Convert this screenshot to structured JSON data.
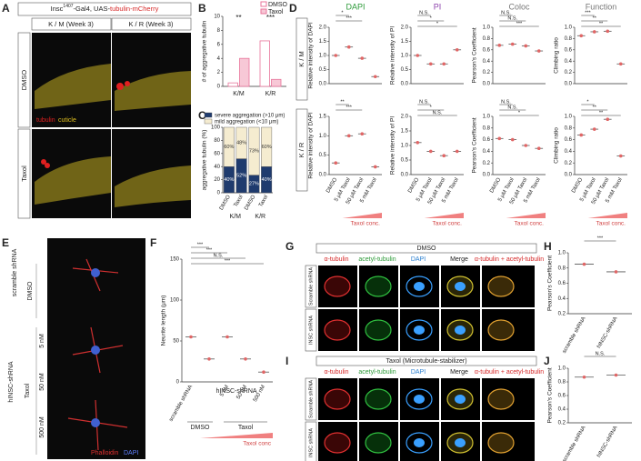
{
  "A": {
    "label": "A",
    "title_parts": [
      "Insc",
      "1407",
      "-Gal4, UAS-",
      "tubulin-mCherry"
    ],
    "columns": [
      "K / M (Week 3)",
      "K / R (Week 3)"
    ],
    "rows": [
      "DMSO",
      "Taxol"
    ],
    "legend": [
      "tubulin",
      "cuticle"
    ]
  },
  "B": {
    "label": "B"
  },
  "C": {
    "label": "C"
  },
  "D": {
    "label": "D",
    "rows": [
      "K / M",
      "K / R"
    ]
  },
  "E": {
    "label": "E",
    "rows": [
      "scramble shRNA",
      "DMSO",
      "hINSC-shRNA",
      "5 nM",
      "50 nM",
      "500 nM",
      "Taxol"
    ],
    "legend": [
      "Phalloidin",
      "DAPI"
    ]
  },
  "F": {
    "label": "F"
  },
  "G": {
    "label": "G",
    "title": "DMSO",
    "columns": [
      "α-tubulin",
      "acetyl-tubulin",
      "DAPI",
      "Merge",
      "α-tubulin + acetyl-tubulin"
    ],
    "rows": [
      "Scramble shRNA",
      "INSC shRNA"
    ]
  },
  "H": {
    "label": "H"
  },
  "I": {
    "label": "I",
    "title": "Taxol (Microtubule-stabilizer)",
    "columns": [
      "α-tubulin",
      "acetyl-tubulin",
      "DAPI",
      "Merge",
      "α-tubulin + acetyl-tubulin"
    ],
    "rows": [
      "Scramble shRNA",
      "INSC shRNA"
    ]
  },
  "J": {
    "label": "J"
  },
  "chart_data": [
    {
      "type": "bar",
      "ylabel": "# of aggregative tubulin",
      "categories": [
        "K/M",
        "K/R"
      ],
      "series": [
        {
          "name": "DMSO",
          "color": "#e8739a",
          "fill": "#ffffff",
          "values": [
            0.5,
            6.5
          ]
        },
        {
          "name": "Taxol",
          "color": "#e8739a",
          "fill": "#f7c8d6",
          "values": [
            4,
            1
          ]
        }
      ],
      "ylim": [
        0,
        10
      ],
      "yticks": [
        0,
        2,
        4,
        6,
        8,
        10
      ],
      "annotations": [
        "**",
        "***"
      ],
      "legend": "top-right"
    },
    {
      "type": "bar",
      "stacked": true,
      "ylabel": "aggregative tubulin (%)",
      "categories": [
        "DMSO",
        "Taxol",
        "DMSO",
        "Taxol"
      ],
      "groups": [
        "K/M",
        "K/R"
      ],
      "series": [
        {
          "name": "severe aggregation (>10 μm)",
          "color": "#1f3b6e",
          "values": [
            40,
            52,
            27,
            40
          ],
          "value_labels": [
            "40%",
            "52%",
            "27%",
            "40%"
          ]
        },
        {
          "name": "mild aggregation (<10 μm)",
          "color": "#f5ecd0",
          "values": [
            60,
            48,
            73,
            60
          ],
          "value_labels": [
            "60%",
            "48%",
            "73%",
            "60%"
          ]
        }
      ],
      "ylim": [
        0,
        100
      ],
      "yticks": [
        0,
        20,
        40,
        60,
        80,
        100
      ],
      "legend": "top"
    },
    {
      "type": "dot",
      "title": "DAPI",
      "title_color": "#2e9b3a",
      "ylabel": "Relative intensity of DAPI",
      "color": "#e06666",
      "values": [
        1.0,
        1.3,
        0.9,
        0.25
      ],
      "ylim": [
        0,
        2
      ],
      "yticks": [
        {
          "value": 0,
          "label": "0.0"
        },
        0.5,
        {
          "value": 1,
          "label": "1.0"
        },
        1.5,
        {
          "value": 2,
          "label": "2.0"
        }
      ],
      "annotations": [
        "*",
        "***"
      ]
    },
    {
      "type": "dot",
      "title": "PI",
      "title_color": "#8e44ad",
      "ylabel": "Relative intensity of PI",
      "color": "#e06666",
      "values": [
        1.0,
        0.7,
        0.7,
        1.2
      ],
      "ylim": [
        0,
        2
      ],
      "yticks": [
        {
          "value": 0,
          "label": "0.0"
        },
        0.5,
        {
          "value": 1,
          "label": "1.0"
        },
        1.5,
        {
          "value": 2,
          "label": "2.0"
        }
      ],
      "annotations": [
        "N.S.",
        "*",
        "*"
      ]
    },
    {
      "type": "dot",
      "title": "Coloc",
      "title_color": "#777777",
      "ylabel": "Pearson's Coefficient",
      "color": "#e06666",
      "values": [
        0.68,
        0.7,
        0.67,
        0.58
      ],
      "ylim": [
        0,
        1
      ],
      "yticks": [
        {
          "value": 0,
          "label": "0.0"
        },
        0.2,
        0.4,
        0.6,
        0.8,
        {
          "value": 1,
          "label": "1.0"
        }
      ],
      "annotations": [
        "N.S.",
        "N.S.",
        "***"
      ]
    },
    {
      "type": "dot",
      "title": "Function",
      "title_color": "#777777",
      "ylabel": "Climbing ratio",
      "color": "#e06666",
      "values": [
        0.85,
        0.92,
        0.93,
        0.35
      ],
      "ylim": [
        0,
        1
      ],
      "yticks": [
        {
          "value": 0,
          "label": "0.0"
        },
        0.2,
        0.4,
        0.6,
        0.8,
        {
          "value": 1,
          "label": "1.0"
        }
      ],
      "annotations": [
        "***",
        "**",
        "**"
      ]
    },
    {
      "type": "dot",
      "ylabel": "Relative intensity of DAPI",
      "color": "#e06666",
      "categories": [
        "DMSO",
        "5 μM Taxol",
        "50 μM Taxol",
        "5 mM Taxol"
      ],
      "values": [
        0.3,
        1.0,
        1.05,
        0.2
      ],
      "ylim": [
        0,
        1.5
      ],
      "yticks": [
        {
          "value": 0,
          "label": "0.0"
        },
        0.5,
        {
          "value": 1,
          "label": "1.0"
        },
        1.5
      ],
      "annotations": [
        "**",
        "***"
      ],
      "gradient_label": "Taxol conc."
    },
    {
      "type": "dot",
      "ylabel": "Relative intensity of PI",
      "color": "#e06666",
      "categories": [
        "DMSO",
        "5 μM Taxol",
        "50 μM Taxol",
        "5 mM Taxol"
      ],
      "values": [
        1.1,
        0.8,
        0.65,
        0.8
      ],
      "ylim": [
        0,
        2
      ],
      "yticks": [
        {
          "value": 0,
          "label": "0.0"
        },
        0.5,
        {
          "value": 1,
          "label": "1.0"
        },
        1.5,
        {
          "value": 2,
          "label": "2.0"
        }
      ],
      "annotations": [
        "N.S.",
        "*",
        "N.S."
      ],
      "gradient_label": "Taxol conc."
    },
    {
      "type": "dot",
      "ylabel": "Pearson's Coefficient",
      "color": "#e06666",
      "categories": [
        "DMSO",
        "5 μM Taxol",
        "50 μM Taxol",
        "5 mM Taxol"
      ],
      "values": [
        0.62,
        0.6,
        0.5,
        0.45
      ],
      "ylim": [
        0,
        1
      ],
      "yticks": [
        {
          "value": 0,
          "label": "0.0"
        },
        0.2,
        0.4,
        0.6,
        0.8,
        {
          "value": 1,
          "label": "1.0"
        }
      ],
      "annotations": [
        "N.S.",
        "N.S.",
        "*"
      ],
      "gradient_label": "Taxol conc."
    },
    {
      "type": "dot",
      "ylabel": "Climbing ratio",
      "color": "#e06666",
      "categories": [
        "DMSO",
        "5 μM Taxol",
        "50 μM Taxol",
        "5 mM Taxol"
      ],
      "values": [
        0.68,
        0.78,
        0.95,
        0.32
      ],
      "ylim": [
        0,
        1
      ],
      "yticks": [
        {
          "value": 0,
          "label": "0.0"
        },
        0.2,
        0.4,
        0.6,
        0.8,
        {
          "value": 1,
          "label": "1.0"
        }
      ],
      "annotations": [
        "*",
        "**",
        "**"
      ],
      "gradient_label": "Taxol conc."
    },
    {
      "type": "dot",
      "ylabel": "Neurite length (μm)",
      "color": "#e06666",
      "categories": [
        "scramble shRNA",
        null,
        "5 nM",
        "50 nM",
        "500 nM"
      ],
      "group_label": "hINSC-shRNA",
      "conditions": [
        "DMSO",
        "Taxol"
      ],
      "gradient_label": "Taxol conc",
      "values": [
        55,
        28,
        55,
        28,
        12
      ],
      "ylim": [
        0,
        150
      ],
      "yticks": [
        0,
        50,
        100,
        150
      ],
      "annotations": [
        "***",
        "***",
        "N.S.",
        "***"
      ]
    },
    {
      "type": "dot",
      "ylabel": "Pearson's Coefficient",
      "color": "#e06666",
      "categories": [
        "scramble shRNA",
        "hINSC-shRNA"
      ],
      "values": [
        0.85,
        0.75
      ],
      "ylim": [
        0.2,
        1
      ],
      "yticks": [
        0.2,
        0.4,
        0.6,
        0.8,
        {
          "value": 1,
          "label": "1.0"
        }
      ],
      "annotations": [
        "***"
      ]
    },
    {
      "type": "dot",
      "ylabel": "Pearson's Coefficient",
      "color": "#e06666",
      "categories": [
        "scramble shRNA",
        "hINSC-shRNA"
      ],
      "values": [
        0.87,
        0.9
      ],
      "ylim": [
        0.2,
        1
      ],
      "yticks": [
        0.2,
        0.4,
        0.6,
        0.8,
        {
          "value": 1,
          "label": "1.0"
        }
      ],
      "annotations": [
        "N.S."
      ]
    }
  ]
}
